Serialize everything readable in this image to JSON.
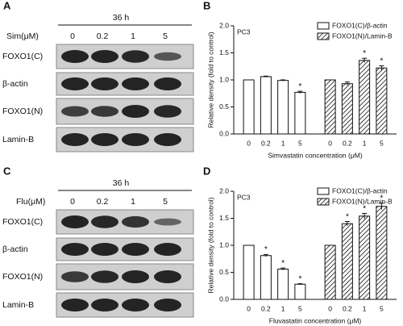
{
  "blots": [
    {
      "label": "A",
      "time": "36 h",
      "treatment": "Sim(μM)",
      "lanes": [
        "0",
        "0.2",
        "1",
        "5"
      ],
      "rows": [
        "FOXO1(C)",
        "β-actin",
        "FOXO1(N)",
        "Lamin-B"
      ]
    },
    {
      "label": "C",
      "time": "36 h",
      "treatment": "Flu(μM)",
      "lanes": [
        "0",
        "0.2",
        "1",
        "5"
      ],
      "rows": [
        "FOXO1(C)",
        "β-actin",
        "FOXO1(N)",
        "Lamin-B"
      ]
    }
  ],
  "chart_data": [
    {
      "type": "bar",
      "panel_label": "B",
      "subtitle": "PC3",
      "ylabel": "Relative density (fold to control)",
      "xlabel": "Simvastatin concentration (μM)",
      "categories": [
        "0",
        "0.2",
        "1",
        "5"
      ],
      "series": [
        {
          "name": "FOXO1(C)/β-actin",
          "color": "#ffffff",
          "hatch": false,
          "values": [
            1.0,
            1.06,
            0.99,
            0.77
          ],
          "errors": [
            0,
            0.01,
            0.01,
            0.02
          ],
          "markers": [
            null,
            null,
            null,
            "*"
          ]
        },
        {
          "name": "FOXO1(N)/Lamin-B",
          "color": "#ffffff",
          "hatch": true,
          "values": [
            1.0,
            0.93,
            1.36,
            1.22
          ],
          "errors": [
            0,
            0.03,
            0.04,
            0.04
          ],
          "markers": [
            null,
            null,
            "*",
            "*"
          ]
        }
      ],
      "ylim": [
        0,
        2
      ],
      "yticks": [
        {
          "value": 0,
          "label": "0.0"
        },
        {
          "value": 0.5,
          "label": "0.5"
        },
        {
          "value": 1,
          "label": "1.0"
        },
        {
          "value": 1.5,
          "label": "1.5"
        },
        {
          "value": 2,
          "label": "2.0"
        }
      ],
      "legend": "top-right"
    },
    {
      "type": "bar",
      "panel_label": "D",
      "subtitle": "PC3",
      "ylabel": "Relative density (fold to control)",
      "xlabel": "Fluvastatin concentration (μM)",
      "categories": [
        "0",
        "0.2",
        "1",
        "5"
      ],
      "series": [
        {
          "name": "FOXO1(C)/β-actin",
          "color": "#ffffff",
          "hatch": false,
          "values": [
            1.0,
            0.81,
            0.56,
            0.28
          ],
          "errors": [
            0,
            0.02,
            0.02,
            0.01
          ],
          "markers": [
            null,
            "*",
            "*",
            "*"
          ]
        },
        {
          "name": "FOXO1(N)/Lamin-B",
          "color": "#ffffff",
          "hatch": true,
          "values": [
            1.0,
            1.4,
            1.54,
            1.72
          ],
          "errors": [
            0,
            0.04,
            0.05,
            0.06
          ],
          "markers": [
            null,
            "*",
            "*",
            "*"
          ]
        }
      ],
      "ylim": [
        0,
        2
      ],
      "yticks": [
        {
          "value": 0,
          "label": "0.0"
        },
        {
          "value": 0.5,
          "label": "0.5"
        },
        {
          "value": 1,
          "label": "1.0"
        },
        {
          "value": 1.5,
          "label": "1.5"
        },
        {
          "value": 2,
          "label": "2.0"
        }
      ],
      "legend": "top-right"
    }
  ]
}
